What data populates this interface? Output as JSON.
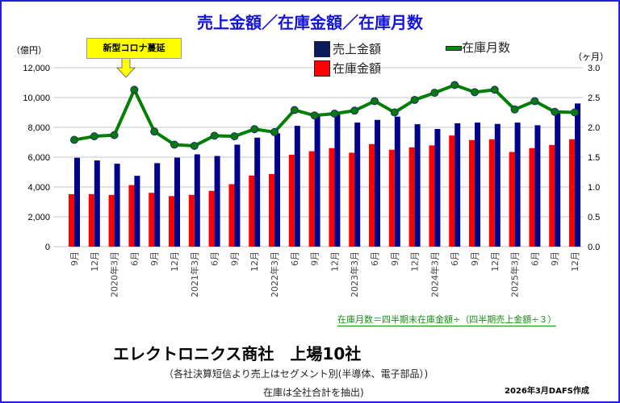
{
  "chart_data": {
    "type": "bar+line",
    "title": "売上金額／在庫金額／在庫月数",
    "ylabel_left": "（億円）",
    "ylabel_right": "（ヶ月）",
    "ylim_left": [
      0,
      12000
    ],
    "ylim_right": [
      0,
      3.0
    ],
    "yticks_left": [
      "0",
      "2,000",
      "4,000",
      "6,000",
      "8,000",
      "10,000",
      "12,000"
    ],
    "yticks_right": [
      "0.0",
      "0.5",
      "1.0",
      "1.5",
      "2.0",
      "2.5",
      "3.0"
    ],
    "grid": true,
    "categories": [
      "9月",
      "12月",
      "2020年3月",
      "6月",
      "9月",
      "12月",
      "2021年3月",
      "6月",
      "9月",
      "12月",
      "2022年3月",
      "6月",
      "9月",
      "12月",
      "2023年3月",
      "6月",
      "9月",
      "12月",
      "2024年3月",
      "6月",
      "9月",
      "12月",
      "2025年3月",
      "6月",
      "9月",
      "12月"
    ],
    "series": [
      {
        "name": "在庫金額",
        "type": "bar",
        "axis": "left",
        "color": "#ff0000",
        "values": [
          3520,
          3520,
          3470,
          4130,
          3610,
          3390,
          3470,
          3740,
          4190,
          4770,
          4870,
          6160,
          6400,
          6610,
          6300,
          6880,
          6500,
          6660,
          6790,
          7450,
          7150,
          7200,
          6350,
          6610,
          6820,
          7200
        ]
      },
      {
        "name": "売上金額",
        "type": "bar",
        "axis": "left",
        "color": "#00008b",
        "values": [
          5960,
          5780,
          5560,
          4750,
          5600,
          5970,
          6190,
          6080,
          6840,
          7310,
          7600,
          8100,
          8800,
          8900,
          8320,
          8500,
          8720,
          8210,
          7890,
          8270,
          8320,
          8230,
          8320,
          8140,
          8990,
          9600
        ]
      },
      {
        "name": "在庫月数",
        "type": "line",
        "axis": "right",
        "color": "#008000",
        "values": [
          1.79,
          1.85,
          1.87,
          2.63,
          1.93,
          1.71,
          1.69,
          1.86,
          1.85,
          1.97,
          1.92,
          2.29,
          2.2,
          2.23,
          2.28,
          2.44,
          2.25,
          2.46,
          2.58,
          2.71,
          2.59,
          2.63,
          2.3,
          2.44,
          2.26,
          2.25
        ]
      }
    ],
    "legend": [
      "売上金額",
      "在庫金額",
      "在庫月数"
    ],
    "legend_position": "top-center",
    "annotation": "新型コロナ蔓延",
    "formula_note": "在庫月数＝四半期末在庫金額÷（四半期売上金額÷３）"
  },
  "footer": {
    "heading": "エレクトロニクス商社　上場10社",
    "note1": "（各社決算短信より売上はセグメント別(半導体、電子部品）)",
    "note2": "在庫は全社合計を抽出)",
    "credit": "2026年3月DAFS作成"
  }
}
